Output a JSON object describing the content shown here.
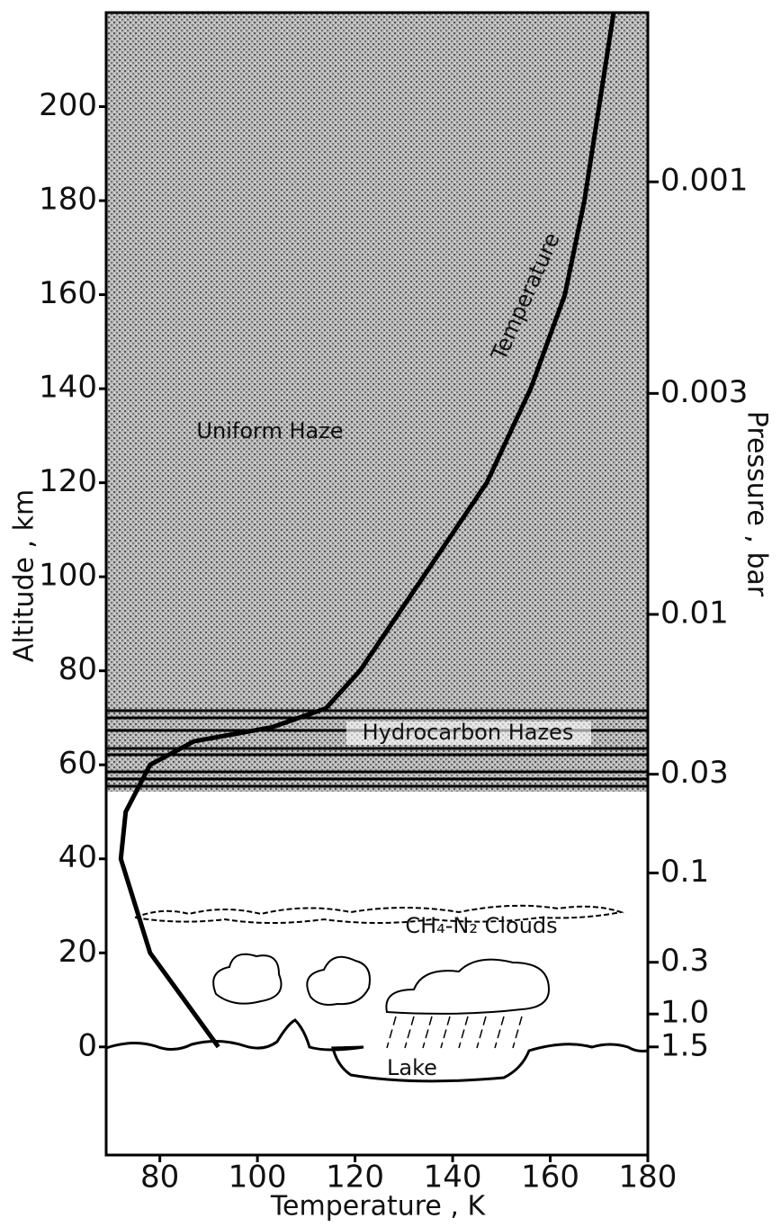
{
  "chart_data": {
    "type": "line",
    "xlabel": "Temperature , K",
    "ylabel": "Altitude , km",
    "y2label": "Pressure , bar",
    "x": [
      92,
      85,
      78,
      72,
      73,
      78,
      87,
      103,
      114,
      121,
      134,
      147,
      156,
      163,
      167,
      170,
      173
    ],
    "values": [
      0,
      10,
      20,
      40,
      50,
      60,
      65,
      68,
      72,
      80,
      100,
      120,
      140,
      160,
      180,
      200,
      220
    ],
    "color": "#000000",
    "xlim": [
      69,
      180
    ],
    "ylim": [
      -23,
      220
    ],
    "xticks": [
      80,
      100,
      120,
      140,
      160,
      180
    ],
    "yticks": [
      0,
      20,
      40,
      60,
      80,
      100,
      120,
      140,
      160,
      180,
      200
    ],
    "y2ticks": [
      0.001,
      0.003,
      0.01,
      0.03,
      0.1,
      0.3,
      {
        "value": 1,
        "label": "1.0"
      },
      1.5
    ],
    "y2tick_altitudes": [
      184,
      139,
      92,
      58,
      37,
      18,
      7,
      0
    ],
    "grid": false,
    "annotations": {
      "uniform_haze": "Uniform Haze",
      "temperature": "Temperature",
      "hydrocarbon_hazes": "Hydrocarbon Hazes",
      "clouds": "CH₄-N₂ Clouds",
      "lake": "Lake"
    }
  }
}
